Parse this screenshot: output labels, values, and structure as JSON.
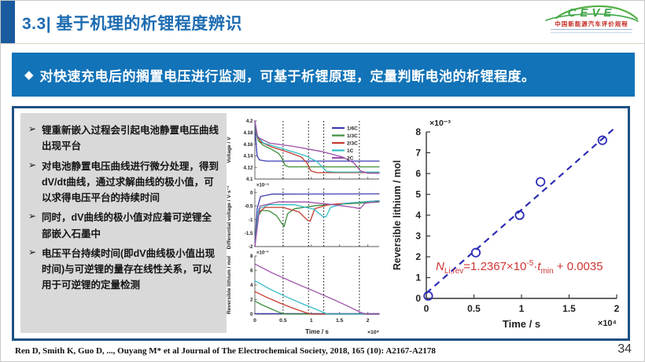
{
  "header": {
    "title": "3.3| 基于机理的析锂程度辨识"
  },
  "logo": {
    "name": "CEVE",
    "subtitle": "中国新能源汽车评价规程"
  },
  "banner": {
    "bullet": "◆",
    "text": "对快速充电后的搁置电压进行监测，可基于析锂原理，定量判断电池的析锂程度。"
  },
  "bullets": {
    "marker": "➢",
    "items": [
      "锂重新嵌入过程会引起电池静置电压曲线出现平台",
      "对电池静置电压曲线进行微分处理，得到dV/dt曲线，通过求解曲线的极小值，可以求得电压平台的持续时间",
      "同时，dV曲线的极小值对应着可逆锂全部嵌入石墨中",
      "电压平台持续时间(即dV曲线极小值出现时间)与可逆锂的量存在线性关系，可以用于可逆锂的定量检测"
    ]
  },
  "equation": {
    "n": "N",
    "n_sub": "Li,rev",
    "body": "=1.2367×10",
    "exp": "-5",
    "dot": "·",
    "t": "t",
    "t_sub": "min",
    "tail": " + 0.0035"
  },
  "footer": {
    "citation": "Ren D, Smith K, Guo D, ..., Ouyang M* et al Journal of The Electrochemical Society, 2018, 165 (10): A2167-A2178",
    "page_number": "34"
  },
  "colors": {
    "banner_bg": "#1273b8",
    "title_blue": "#1d6cb1",
    "accent": "#1a5a9e",
    "box_border": "#1f5184",
    "panel_grey": "#d9d9d9",
    "equation_red": "#cf3434",
    "scatter_blue": "#2d2db4",
    "logo_green": "#3fa648",
    "logo_red": "#c42a23"
  },
  "chart_data": [
    {
      "id": "rest-voltage-figure",
      "type": "line",
      "xlabel": "Time / s",
      "x_exp": "×10⁴",
      "x_max": 2.2,
      "x_ticks": [
        0,
        0.5,
        1,
        1.5,
        2
      ],
      "dotted_lines_x": [
        0.5,
        0.95,
        1.22,
        1.85
      ],
      "legend": [
        "1/6C",
        "1/3C",
        "2/3C",
        "1C",
        "2C"
      ],
      "colors": [
        "#3b3bb0",
        "#3c8f3c",
        "#c23b2e",
        "#33bcc4",
        "#9b4fa8"
      ],
      "panels": [
        {
          "ylabel": "Voltage / V",
          "y_exp": "",
          "ylim": [
            4.1,
            4.2
          ],
          "y_ticks": [
            4.1,
            4.12,
            4.14,
            4.16,
            4.18,
            4.2
          ],
          "series": [
            {
              "name": "1/6C",
              "points": [
                [
                  0,
                  4.2
                ],
                [
                  0.015,
                  4.17
                ],
                [
                  0.04,
                  4.14
                ],
                [
                  0.08,
                  4.133
                ],
                [
                  0.2,
                  4.131
                ],
                [
                  2.2,
                  4.131
                ]
              ]
            },
            {
              "name": "1/3C",
              "points": [
                [
                  0,
                  4.2
                ],
                [
                  0.02,
                  4.18
                ],
                [
                  0.06,
                  4.166
                ],
                [
                  0.15,
                  4.158
                ],
                [
                  0.3,
                  4.151
                ],
                [
                  0.42,
                  4.144
                ],
                [
                  0.48,
                  4.136
                ],
                [
                  0.53,
                  4.124
                ],
                [
                  0.6,
                  4.121
                ],
                [
                  2.2,
                  4.121
                ]
              ]
            },
            {
              "name": "2/3C",
              "points": [
                [
                  0,
                  4.2
                ],
                [
                  0.03,
                  4.178
                ],
                [
                  0.1,
                  4.164
                ],
                [
                  0.3,
                  4.155
                ],
                [
                  0.6,
                  4.146
                ],
                [
                  0.82,
                  4.138
                ],
                [
                  0.92,
                  4.128
                ],
                [
                  0.99,
                  4.114
                ],
                [
                  1.1,
                  4.111
                ],
                [
                  2.2,
                  4.111
                ]
              ]
            },
            {
              "name": "1C",
              "points": [
                [
                  0,
                  4.2
                ],
                [
                  0.04,
                  4.175
                ],
                [
                  0.15,
                  4.162
                ],
                [
                  0.5,
                  4.152
                ],
                [
                  0.9,
                  4.14
                ],
                [
                  1.1,
                  4.13
                ],
                [
                  1.2,
                  4.12
                ],
                [
                  1.27,
                  4.113
                ],
                [
                  1.4,
                  4.112
                ],
                [
                  2.2,
                  4.112
                ]
              ]
            },
            {
              "name": "2C",
              "points": [
                [
                  0,
                  4.2
                ],
                [
                  0.05,
                  4.172
                ],
                [
                  0.25,
                  4.162
                ],
                [
                  0.7,
                  4.156
                ],
                [
                  1.2,
                  4.147
                ],
                [
                  1.55,
                  4.138
                ],
                [
                  1.75,
                  4.128
                ],
                [
                  1.87,
                  4.114
                ],
                [
                  2.0,
                  4.11
                ],
                [
                  2.2,
                  4.11
                ]
              ]
            }
          ]
        },
        {
          "ylabel": "Differential voltage / V·s⁻¹",
          "y_exp": "×10⁻⁵",
          "ylim": [
            -2,
            0.15
          ],
          "y_ticks": [
            -2,
            -1.5,
            -1,
            -0.5,
            0
          ],
          "series": [
            {
              "name": "1/6C",
              "points": [
                [
                  0,
                  -2
                ],
                [
                  0.04,
                  -0.6
                ],
                [
                  0.1,
                  -0.15
                ],
                [
                  0.3,
                  -0.06
                ],
                [
                  2.2,
                  -0.05
                ]
              ]
            },
            {
              "name": "1/3C",
              "points": [
                [
                  0,
                  -2
                ],
                [
                  0.05,
                  -0.9
                ],
                [
                  0.12,
                  -0.66
                ],
                [
                  0.25,
                  -0.68
                ],
                [
                  0.38,
                  -0.85
                ],
                [
                  0.48,
                  -1.15
                ],
                [
                  0.52,
                  -1.25
                ],
                [
                  0.58,
                  -0.78
                ],
                [
                  0.7,
                  -0.6
                ],
                [
                  1.1,
                  -0.48
                ],
                [
                  2.2,
                  -0.35
                ]
              ]
            },
            {
              "name": "2/3C",
              "points": [
                [
                  0,
                  -2
                ],
                [
                  0.06,
                  -0.75
                ],
                [
                  0.18,
                  -0.55
                ],
                [
                  0.5,
                  -0.55
                ],
                [
                  0.78,
                  -0.72
                ],
                [
                  0.93,
                  -1.02
                ],
                [
                  0.98,
                  -1.06
                ],
                [
                  1.06,
                  -0.6
                ],
                [
                  1.3,
                  -0.45
                ],
                [
                  2.2,
                  -0.3
                ]
              ]
            },
            {
              "name": "1C",
              "points": [
                [
                  0,
                  -2
                ],
                [
                  0.07,
                  -0.6
                ],
                [
                  0.25,
                  -0.45
                ],
                [
                  0.7,
                  -0.45
                ],
                [
                  1.05,
                  -0.62
                ],
                [
                  1.2,
                  -0.88
                ],
                [
                  1.26,
                  -0.9
                ],
                [
                  1.34,
                  -0.55
                ],
                [
                  1.6,
                  -0.4
                ],
                [
                  2.2,
                  -0.3
                ]
              ]
            },
            {
              "name": "2C",
              "points": [
                [
                  0,
                  -2
                ],
                [
                  0.09,
                  -0.5
                ],
                [
                  0.4,
                  -0.35
                ],
                [
                  0.9,
                  -0.35
                ],
                [
                  1.4,
                  -0.45
                ],
                [
                  1.75,
                  -0.55
                ],
                [
                  1.86,
                  -0.6
                ],
                [
                  1.95,
                  -0.4
                ],
                [
                  2.2,
                  -0.33
                ]
              ]
            }
          ]
        },
        {
          "ylabel": "Reversible lithium / mol",
          "y_exp": "×10⁻³",
          "ylim": [
            0,
            8
          ],
          "y_ticks": [
            0,
            2,
            4,
            6,
            8
          ],
          "series": [
            {
              "name": "1/6C",
              "points": [
                [
                  0,
                  0.06
                ],
                [
                  2.2,
                  0.06
                ]
              ]
            },
            {
              "name": "1/3C",
              "points": [
                [
                  0,
                  1.8
                ],
                [
                  0.12,
                  1.3
                ],
                [
                  0.25,
                  0.85
                ],
                [
                  0.4,
                  0.35
                ],
                [
                  0.5,
                  0.05
                ],
                [
                  0.55,
                  0
                ],
                [
                  2.2,
                  0
                ]
              ]
            },
            {
              "name": "2/3C",
              "points": [
                [
                  0,
                  3.1
                ],
                [
                  0.2,
                  2.35
                ],
                [
                  0.45,
                  1.5
                ],
                [
                  0.7,
                  0.75
                ],
                [
                  0.9,
                  0.2
                ],
                [
                  0.99,
                  0
                ],
                [
                  2.2,
                  0
                ]
              ]
            },
            {
              "name": "1C",
              "points": [
                [
                  0,
                  4.6
                ],
                [
                  0.25,
                  3.5
                ],
                [
                  0.55,
                  2.4
                ],
                [
                  0.85,
                  1.4
                ],
                [
                  1.1,
                  0.6
                ],
                [
                  1.27,
                  0.05
                ],
                [
                  1.32,
                  0
                ],
                [
                  2.2,
                  0
                ]
              ]
            },
            {
              "name": "2C",
              "points": [
                [
                  0,
                  6.9
                ],
                [
                  0.3,
                  5.7
                ],
                [
                  0.7,
                  4.3
                ],
                [
                  1.1,
                  3.0
                ],
                [
                  1.45,
                  1.8
                ],
                [
                  1.7,
                  0.9
                ],
                [
                  1.88,
                  0.2
                ],
                [
                  1.97,
                  0
                ],
                [
                  2.2,
                  0
                ]
              ]
            }
          ]
        }
      ]
    },
    {
      "id": "reversible-lithium-fit",
      "type": "scatter",
      "xlabel": "Time / s",
      "x_exp": "×10⁴",
      "ylabel": "Reversible lithium / mol",
      "y_exp": "×10⁻³",
      "xlim": [
        0,
        2
      ],
      "x_ticks": [
        0,
        0.5,
        1,
        1.5,
        2
      ],
      "ylim": [
        0,
        8
      ],
      "y_ticks": [
        0,
        1,
        2,
        3,
        4,
        5,
        6,
        7,
        8
      ],
      "points": [
        [
          0.02,
          0.12
        ],
        [
          0.52,
          2.2
        ],
        [
          0.98,
          4.0
        ],
        [
          1.2,
          5.6
        ],
        [
          1.85,
          7.6
        ]
      ],
      "fit_line": [
        [
          0.0,
          0.25
        ],
        [
          1.97,
          8.15
        ]
      ],
      "point_color": "#2d2db4",
      "equation_text": "N_Li,rev=1.2367×10⁻⁵·t_min + 0.0035"
    }
  ]
}
